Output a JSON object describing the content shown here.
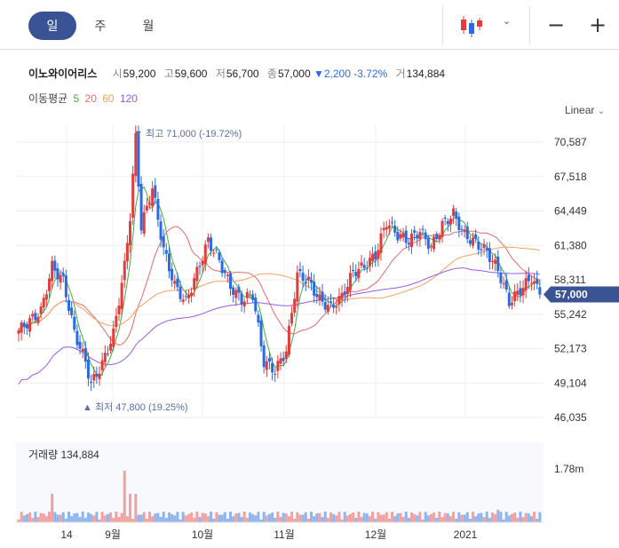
{
  "toolbar": {
    "period_tabs": [
      "일",
      "주",
      "월"
    ],
    "active_period": "일",
    "zoom_out": "−",
    "zoom_in": "+"
  },
  "quote": {
    "name": "이노와이어리스",
    "open_label": "시",
    "open": "59,200",
    "high_label": "고",
    "high": "59,600",
    "low_label": "저",
    "low": "56,700",
    "close_label": "종",
    "close": "57,000",
    "change": "▼2,200",
    "change_pct": "-3.72%",
    "volume_label": "거",
    "volume": "134,884"
  },
  "moving_average": {
    "label": "이동평균",
    "periods": [
      {
        "value": "5",
        "color": "#3fae3f"
      },
      {
        "value": "20",
        "color": "#e66b6b"
      },
      {
        "value": "60",
        "color": "#f2a35e"
      },
      {
        "value": "120",
        "color": "#9b59e0"
      }
    ]
  },
  "scale_mode": "Linear",
  "chart_data": {
    "type": "candlestick",
    "y_ticks": [
      "70,587",
      "67,518",
      "64,449",
      "61,380",
      "58,311",
      "55,242",
      "52,173",
      "49,104",
      "46,035"
    ],
    "y_range": [
      46035,
      70587
    ],
    "x_ticks": [
      "14",
      "9월",
      "10월",
      "11월",
      "12월",
      "2021"
    ],
    "current_price": "57,000",
    "max_annotation": "▼ 최고 71,000 (-19.72%)",
    "min_annotation": "▲ 최저 47,800 (19.25%)",
    "volume_label": "거래량 134,884",
    "volume_tick": "1.78m",
    "up_color": "#e23c3c",
    "down_color": "#2b6be0"
  }
}
